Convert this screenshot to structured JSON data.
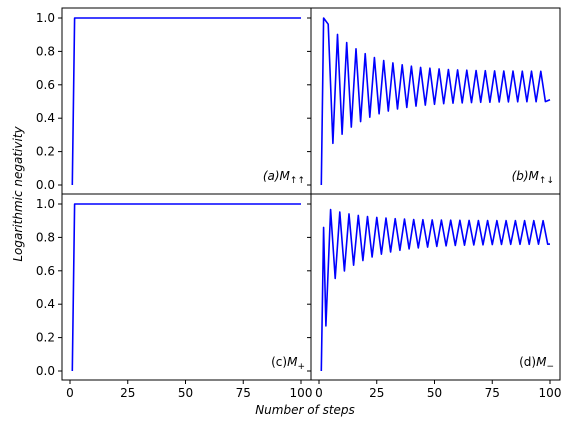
{
  "chart_data": [
    {
      "id": "a",
      "type": "line",
      "panel_label": {
        "prefix": "(a)",
        "symbol": "M",
        "sub": "↑↑"
      },
      "xlim": [
        0,
        100
      ],
      "ylim": [
        0.0,
        1.0
      ],
      "yticks": [
        "0.0",
        "0.2",
        "0.4",
        "0.6",
        "0.8",
        "1.0"
      ],
      "pattern": "step",
      "series": [
        {
          "color": "#0000ff",
          "points": [
            [
              1,
              0.0
            ],
            [
              2,
              1.0
            ],
            [
              100,
              1.0
            ]
          ]
        }
      ]
    },
    {
      "id": "b",
      "type": "line",
      "panel_label": {
        "prefix": "(b)",
        "symbol": "M",
        "sub": "↑↓"
      },
      "xlim": [
        0,
        100
      ],
      "ylim": [
        0.0,
        1.0
      ],
      "pattern": "oscillating",
      "oscillation": {
        "start": [
          1,
          0.0
        ],
        "first_peak": [
          2,
          1.0
        ],
        "period": 4,
        "high_start": 1.0,
        "high_end": 0.68,
        "low_start": 0.18,
        "low_end": 0.5,
        "end": [
          100,
          0.51
        ]
      },
      "series": [
        {
          "color": "#0000ff"
        }
      ]
    },
    {
      "id": "c",
      "type": "line",
      "panel_label": {
        "prefix": "(c)",
        "symbol": "M",
        "sub": "+"
      },
      "xlim": [
        0,
        100
      ],
      "ylim": [
        0.0,
        1.0
      ],
      "yticks": [
        "0.0",
        "0.2",
        "0.4",
        "0.6",
        "0.8",
        "1.0"
      ],
      "xticks": [
        "0",
        "25",
        "50",
        "75",
        "100"
      ],
      "pattern": "step",
      "series": [
        {
          "color": "#0000ff",
          "points": [
            [
              1,
              0.0
            ],
            [
              2,
              1.0
            ],
            [
              100,
              1.0
            ]
          ]
        }
      ]
    },
    {
      "id": "d",
      "type": "line",
      "panel_label": {
        "prefix": "(d)",
        "symbol": "M",
        "sub": "−"
      },
      "xlim": [
        0,
        100
      ],
      "ylim": [
        0.0,
        1.0
      ],
      "xticks": [
        "0",
        "25",
        "50",
        "75",
        "100"
      ],
      "pattern": "oscillating",
      "oscillation": {
        "start": [
          1,
          0.0
        ],
        "first_peak": [
          2,
          0.86
        ],
        "second_low": [
          3,
          0.27
        ],
        "period": 4,
        "high_start": 0.98,
        "high_end": 0.9,
        "low_start": 0.48,
        "low_end": 0.76,
        "end": [
          100,
          0.76
        ]
      },
      "series": [
        {
          "color": "#0000ff"
        }
      ]
    }
  ],
  "labels": {
    "ylabel": "Logarithmic negativity",
    "xlabel": "Number of steps"
  }
}
